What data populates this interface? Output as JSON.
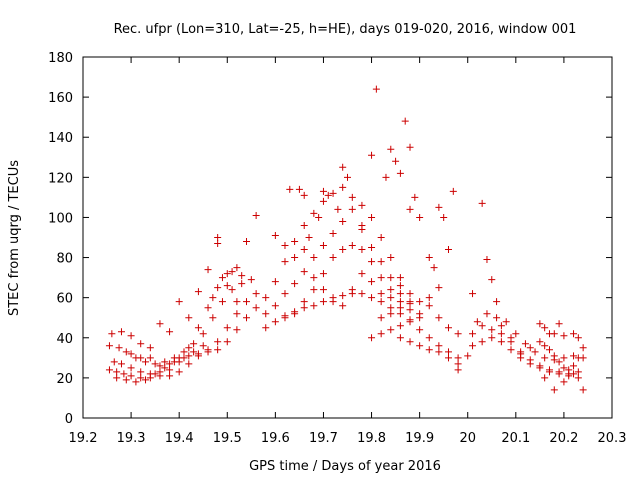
{
  "chart_data": {
    "type": "scatter",
    "title": "Rec. ufpr (Lon=310, Lat=-25, h=HE), days 019-020, 2016, window 001",
    "xlabel": "GPS time / Days of year 2016",
    "ylabel": "STEC from uqrg / TECUs",
    "xlim": [
      19.2,
      20.3
    ],
    "ylim": [
      0,
      180
    ],
    "xticks": [
      19.2,
      19.3,
      19.4,
      19.5,
      19.6,
      19.7,
      19.8,
      19.9,
      20,
      20.1,
      20.2,
      20.3
    ],
    "xtick_labels": [
      "19.2",
      "19.3",
      "19.4",
      "19.5",
      "19.6",
      "19.7",
      "19.8",
      "19.9",
      "20",
      "20.1",
      "20.2",
      "20.3"
    ],
    "yticks": [
      0,
      20,
      40,
      60,
      80,
      100,
      120,
      140,
      160,
      180
    ],
    "ytick_labels": [
      "0",
      "20",
      "40",
      "60",
      "80",
      "100",
      "120",
      "140",
      "160",
      "180"
    ],
    "marker": "+",
    "color": "#cc0000",
    "grid": false,
    "series": [
      {
        "points": [
          [
            19.255,
            24
          ],
          [
            19.27,
            23
          ],
          [
            19.285,
            22
          ],
          [
            19.3,
            21
          ],
          [
            19.32,
            20
          ],
          [
            19.34,
            20
          ],
          [
            19.36,
            21
          ],
          [
            19.38,
            21
          ],
          [
            19.4,
            23
          ],
          [
            19.42,
            27
          ],
          [
            19.44,
            31
          ],
          [
            19.46,
            34
          ],
          [
            19.48,
            38
          ],
          [
            19.5,
            45
          ],
          [
            19.52,
            52
          ],
          [
            19.54,
            58
          ],
          [
            19.56,
            62
          ],
          [
            19.255,
            36
          ],
          [
            19.275,
            35
          ],
          [
            19.29,
            33
          ],
          [
            19.31,
            30
          ],
          [
            19.33,
            28
          ],
          [
            19.35,
            27
          ],
          [
            19.37,
            28
          ],
          [
            19.39,
            30
          ],
          [
            19.41,
            33
          ],
          [
            19.43,
            37
          ],
          [
            19.45,
            42
          ],
          [
            19.47,
            50
          ],
          [
            19.49,
            58
          ],
          [
            19.51,
            64
          ],
          [
            19.53,
            67
          ],
          [
            19.55,
            69
          ],
          [
            19.26,
            42
          ],
          [
            19.28,
            43
          ],
          [
            19.3,
            41
          ],
          [
            19.32,
            37
          ],
          [
            19.34,
            30
          ],
          [
            19.36,
            26
          ],
          [
            19.38,
            24
          ],
          [
            19.4,
            28
          ],
          [
            19.42,
            35
          ],
          [
            19.44,
            45
          ],
          [
            19.46,
            55
          ],
          [
            19.48,
            65
          ],
          [
            19.5,
            72
          ],
          [
            19.52,
            75
          ],
          [
            19.265,
            28
          ],
          [
            19.28,
            27
          ],
          [
            19.3,
            25
          ],
          [
            19.32,
            23
          ],
          [
            19.34,
            22
          ],
          [
            19.36,
            23
          ],
          [
            19.38,
            27
          ],
          [
            19.4,
            30
          ],
          [
            19.42,
            31
          ],
          [
            19.44,
            32
          ],
          [
            19.46,
            33
          ],
          [
            19.48,
            34
          ],
          [
            19.5,
            38
          ],
          [
            19.52,
            44
          ],
          [
            19.54,
            50
          ],
          [
            19.56,
            55
          ],
          [
            19.27,
            20
          ],
          [
            19.29,
            19
          ],
          [
            19.31,
            18
          ],
          [
            19.33,
            19
          ],
          [
            19.35,
            22
          ],
          [
            19.37,
            25
          ],
          [
            19.39,
            28
          ],
          [
            19.41,
            30
          ],
          [
            19.43,
            33
          ],
          [
            19.45,
            36
          ],
          [
            19.47,
            60
          ],
          [
            19.49,
            70
          ],
          [
            19.51,
            73
          ],
          [
            19.53,
            71
          ],
          [
            19.3,
            32
          ],
          [
            19.32,
            30
          ],
          [
            19.34,
            35
          ],
          [
            19.36,
            47
          ],
          [
            19.38,
            43
          ],
          [
            19.4,
            58
          ],
          [
            19.42,
            50
          ],
          [
            19.44,
            63
          ],
          [
            19.46,
            74
          ],
          [
            19.48,
            90
          ],
          [
            19.48,
            87
          ],
          [
            19.5,
            66
          ],
          [
            19.52,
            58
          ],
          [
            19.54,
            88
          ],
          [
            19.56,
            101
          ],
          [
            19.58,
            45
          ],
          [
            19.6,
            48
          ],
          [
            19.62,
            51
          ],
          [
            19.64,
            53
          ],
          [
            19.66,
            55
          ],
          [
            19.68,
            56
          ],
          [
            19.7,
            58
          ],
          [
            19.72,
            60
          ],
          [
            19.74,
            61
          ],
          [
            19.76,
            62
          ],
          [
            19.78,
            62
          ],
          [
            19.8,
            60
          ],
          [
            19.82,
            58
          ],
          [
            19.84,
            55
          ],
          [
            19.86,
            52
          ],
          [
            19.88,
            49
          ],
          [
            19.58,
            52
          ],
          [
            19.6,
            56
          ],
          [
            19.62,
            62
          ],
          [
            19.64,
            67
          ],
          [
            19.66,
            73
          ],
          [
            19.68,
            80
          ],
          [
            19.7,
            86
          ],
          [
            19.72,
            92
          ],
          [
            19.74,
            98
          ],
          [
            19.76,
            104
          ],
          [
            19.78,
            106
          ],
          [
            19.8,
            100
          ],
          [
            19.82,
            90
          ],
          [
            19.84,
            80
          ],
          [
            19.86,
            70
          ],
          [
            19.88,
            62
          ],
          [
            19.58,
            60
          ],
          [
            19.6,
            68
          ],
          [
            19.62,
            78
          ],
          [
            19.64,
            88
          ],
          [
            19.66,
            96
          ],
          [
            19.68,
            102
          ],
          [
            19.7,
            108
          ],
          [
            19.72,
            112
          ],
          [
            19.74,
            115
          ],
          [
            19.76,
            110
          ],
          [
            19.78,
            96
          ],
          [
            19.8,
            85
          ],
          [
            19.82,
            78
          ],
          [
            19.84,
            70
          ],
          [
            19.86,
            62
          ],
          [
            19.6,
            91
          ],
          [
            19.62,
            86
          ],
          [
            19.63,
            114
          ],
          [
            19.65,
            114
          ],
          [
            19.66,
            111
          ],
          [
            19.67,
            90
          ],
          [
            19.69,
            100
          ],
          [
            19.7,
            113
          ],
          [
            19.71,
            111
          ],
          [
            19.73,
            104
          ],
          [
            19.74,
            125
          ],
          [
            19.75,
            120
          ],
          [
            19.78,
            94
          ],
          [
            19.8,
            131
          ],
          [
            19.81,
            164
          ],
          [
            19.83,
            120
          ],
          [
            19.84,
            134
          ],
          [
            19.85,
            128
          ],
          [
            19.86,
            122
          ],
          [
            19.87,
            148
          ],
          [
            19.88,
            135
          ],
          [
            19.89,
            110
          ],
          [
            19.62,
            50
          ],
          [
            19.64,
            52
          ],
          [
            19.66,
            58
          ],
          [
            19.68,
            64
          ],
          [
            19.7,
            72
          ],
          [
            19.72,
            80
          ],
          [
            19.74,
            84
          ],
          [
            19.76,
            86
          ],
          [
            19.78,
            84
          ],
          [
            19.8,
            78
          ],
          [
            19.82,
            70
          ],
          [
            19.84,
            64
          ],
          [
            19.86,
            58
          ],
          [
            19.88,
            54
          ],
          [
            19.9,
            50
          ],
          [
            19.64,
            80
          ],
          [
            19.66,
            84
          ],
          [
            19.68,
            70
          ],
          [
            19.7,
            64
          ],
          [
            19.72,
            58
          ],
          [
            19.74,
            56
          ],
          [
            19.76,
            64
          ],
          [
            19.78,
            72
          ],
          [
            19.8,
            68
          ],
          [
            19.82,
            62
          ],
          [
            19.84,
            60
          ],
          [
            19.86,
            66
          ],
          [
            19.88,
            58
          ],
          [
            19.9,
            52
          ],
          [
            19.8,
            40
          ],
          [
            19.82,
            42
          ],
          [
            19.84,
            44
          ],
          [
            19.86,
            46
          ],
          [
            19.88,
            48
          ],
          [
            19.9,
            44
          ],
          [
            19.92,
            40
          ],
          [
            19.94,
            36
          ],
          [
            19.96,
            33
          ],
          [
            19.98,
            30
          ],
          [
            20.0,
            31
          ],
          [
            19.82,
            50
          ],
          [
            19.84,
            52
          ],
          [
            19.86,
            55
          ],
          [
            19.88,
            57
          ],
          [
            19.9,
            58
          ],
          [
            19.92,
            56
          ],
          [
            19.94,
            50
          ],
          [
            19.96,
            45
          ],
          [
            19.98,
            42
          ],
          [
            19.86,
            40
          ],
          [
            19.88,
            38
          ],
          [
            19.9,
            36
          ],
          [
            19.92,
            34
          ],
          [
            19.94,
            33
          ],
          [
            19.96,
            30
          ],
          [
            19.98,
            27
          ],
          [
            19.98,
            24
          ],
          [
            19.88,
            104
          ],
          [
            19.9,
            100
          ],
          [
            19.92,
            80
          ],
          [
            19.93,
            75
          ],
          [
            19.94,
            105
          ],
          [
            19.95,
            100
          ],
          [
            19.96,
            84
          ],
          [
            19.97,
            113
          ],
          [
            19.94,
            65
          ],
          [
            19.92,
            60
          ],
          [
            20.01,
            36
          ],
          [
            20.03,
            38
          ],
          [
            20.05,
            40
          ],
          [
            20.07,
            38
          ],
          [
            20.09,
            34
          ],
          [
            20.11,
            30
          ],
          [
            20.13,
            27
          ],
          [
            20.15,
            25
          ],
          [
            20.17,
            23
          ],
          [
            20.19,
            22
          ],
          [
            20.21,
            21
          ],
          [
            20.23,
            20
          ],
          [
            20.01,
            42
          ],
          [
            20.03,
            46
          ],
          [
            20.05,
            44
          ],
          [
            20.07,
            42
          ],
          [
            20.09,
            38
          ],
          [
            20.11,
            33
          ],
          [
            20.13,
            29
          ],
          [
            20.15,
            26
          ],
          [
            20.17,
            24
          ],
          [
            20.19,
            23
          ],
          [
            20.21,
            22
          ],
          [
            20.23,
            23
          ],
          [
            20.02,
            48
          ],
          [
            20.04,
            52
          ],
          [
            20.06,
            50
          ],
          [
            20.08,
            48
          ],
          [
            20.1,
            42
          ],
          [
            20.12,
            37
          ],
          [
            20.14,
            33
          ],
          [
            20.16,
            30
          ],
          [
            20.18,
            29
          ],
          [
            20.2,
            30
          ],
          [
            20.22,
            31
          ],
          [
            20.24,
            30
          ],
          [
            20.01,
            62
          ],
          [
            20.03,
            107
          ],
          [
            20.04,
            79
          ],
          [
            20.05,
            69
          ],
          [
            20.06,
            58
          ],
          [
            20.07,
            46
          ],
          [
            20.09,
            40
          ],
          [
            20.11,
            32
          ],
          [
            20.13,
            35
          ],
          [
            20.15,
            47
          ],
          [
            20.17,
            42
          ],
          [
            20.19,
            47
          ],
          [
            20.15,
            38
          ],
          [
            20.16,
            36
          ],
          [
            20.17,
            34
          ],
          [
            20.18,
            31
          ],
          [
            20.19,
            28
          ],
          [
            20.2,
            25
          ],
          [
            20.21,
            24
          ],
          [
            20.22,
            26
          ],
          [
            20.23,
            30
          ],
          [
            20.24,
            35
          ],
          [
            20.16,
            20
          ],
          [
            20.18,
            14
          ],
          [
            20.2,
            18
          ],
          [
            20.22,
            22
          ],
          [
            20.23,
            40
          ],
          [
            20.24,
            14
          ],
          [
            20.22,
            42
          ],
          [
            20.2,
            41
          ],
          [
            20.18,
            42
          ],
          [
            20.16,
            45
          ]
        ]
      }
    ]
  }
}
